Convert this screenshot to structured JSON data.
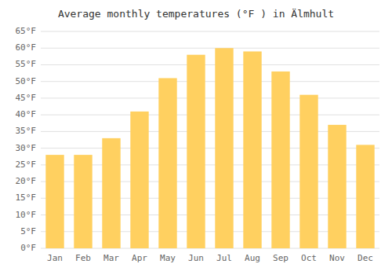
{
  "chart_data": {
    "type": "bar",
    "title": "Average monthly temperatures (°F ) in Älmhult",
    "categories": [
      "Jan",
      "Feb",
      "Mar",
      "Apr",
      "May",
      "Jun",
      "Jul",
      "Aug",
      "Sep",
      "Oct",
      "Nov",
      "Dec"
    ],
    "values": [
      28,
      28,
      33,
      41,
      51,
      58,
      60,
      59,
      53,
      46,
      37,
      31
    ],
    "color": "#FFD060",
    "ylim": [
      0,
      65
    ],
    "yticks": [
      {
        "value": 0,
        "label": "0°F"
      },
      {
        "value": 5,
        "label": "5°F"
      },
      {
        "value": 10,
        "label": "10°F"
      },
      {
        "value": 15,
        "label": "15°F"
      },
      {
        "value": 20,
        "label": "20°F"
      },
      {
        "value": 25,
        "label": "25°F"
      },
      {
        "value": 30,
        "label": "30°F"
      },
      {
        "value": 35,
        "label": "35°F"
      },
      {
        "value": 40,
        "label": "40°F"
      },
      {
        "value": 45,
        "label": "45°F"
      },
      {
        "value": 50,
        "label": "50°F"
      },
      {
        "value": 55,
        "label": "55°F"
      },
      {
        "value": 60,
        "label": "60°F"
      },
      {
        "value": 65,
        "label": "65°F"
      }
    ],
    "grid": true
  }
}
